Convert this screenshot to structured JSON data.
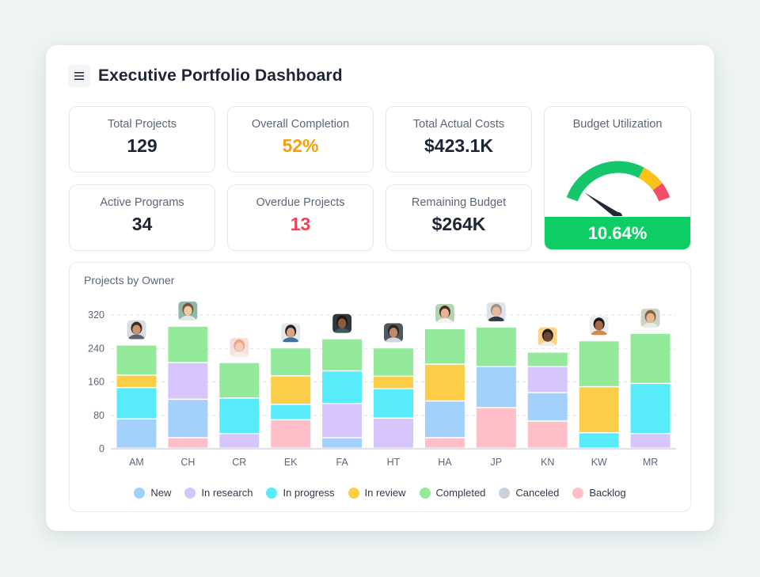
{
  "header": {
    "title": "Executive Portfolio Dashboard"
  },
  "kpis": {
    "total_projects": {
      "label": "Total Projects",
      "value": "129",
      "color": "#1d2433"
    },
    "overall_completion": {
      "label": "Overall Completion",
      "value": "52%",
      "color": "#f5a10e"
    },
    "total_actual_costs": {
      "label": "Total Actual Costs",
      "value": "$423.1K",
      "color": "#1d2433"
    },
    "active_programs": {
      "label": "Active Programs",
      "value": "34",
      "color": "#1d2433"
    },
    "overdue_projects": {
      "label": "Overdue Projects",
      "value": "13",
      "color": "#f0435a"
    },
    "remaining_budget": {
      "label": "Remaining Budget",
      "value": "$264K",
      "color": "#1d2433"
    }
  },
  "budget_gauge": {
    "label": "Budget Utilization",
    "value_text": "10.64%",
    "needle_fraction": 0.1064,
    "bands": [
      {
        "to": 0.7,
        "color": "#16c66b"
      },
      {
        "to": 0.88,
        "color": "#f9c21a"
      },
      {
        "to": 1.0,
        "color": "#f74d69"
      }
    ]
  },
  "chart_data": {
    "type": "bar",
    "stacked": true,
    "title": "Projects by Owner",
    "categories": [
      "AM",
      "CH",
      "CR",
      "EK",
      "FA",
      "HT",
      "HA",
      "JP",
      "KN",
      "KW",
      "MR"
    ],
    "ylim": [
      0,
      320
    ],
    "yticks": [
      0,
      80,
      160,
      240,
      320
    ],
    "grid": true,
    "legend_position": "bottom",
    "series": [
      {
        "name": "Backlog",
        "color": "#ffbfc9",
        "values": [
          0,
          25,
          0,
          68,
          0,
          0,
          25,
          97,
          65,
          0,
          0
        ]
      },
      {
        "name": "New",
        "color": "#a3d1fb",
        "values": [
          70,
          0,
          0,
          0,
          25,
          0,
          0,
          0,
          0,
          0,
          0
        ]
      },
      {
        "name": "In research",
        "color": "#d6c6fb",
        "values": [
          0,
          0,
          35,
          0,
          0,
          72,
          0,
          0,
          0,
          0,
          35
        ]
      },
      {
        "name": "New",
        "color": "#a3d1fb",
        "values": [
          0,
          92,
          0,
          0,
          0,
          0,
          88,
          98,
          0,
          0,
          0
        ]
      },
      {
        "name": "In research",
        "color": "#d6c6fb",
        "values": [
          0,
          0,
          0,
          0,
          82,
          0,
          0,
          0,
          0,
          0,
          0
        ]
      },
      {
        "name": "In progress",
        "color": "#58ecfb",
        "values": [
          0,
          0,
          0,
          0,
          0,
          0,
          0,
          0,
          0,
          0,
          0
        ]
      },
      {
        "name": "New",
        "color": "#a3d1fb",
        "values": [
          0,
          0,
          0,
          0,
          0,
          0,
          0,
          0,
          68,
          0,
          0
        ]
      },
      {
        "name": "In progress",
        "color": "#58ecfb",
        "values": [
          75,
          0,
          85,
          37,
          78,
          70,
          0,
          0,
          0,
          37,
          120
        ]
      },
      {
        "name": "In research",
        "color": "#d6c6fb",
        "values": [
          0,
          88,
          0,
          0,
          0,
          0,
          0,
          0,
          62,
          0,
          0
        ]
      },
      {
        "name": "In review",
        "color": "#fcce48",
        "values": [
          30,
          0,
          0,
          68,
          0,
          30,
          88,
          0,
          0,
          110,
          0
        ]
      },
      {
        "name": "Completed",
        "color": "#92ea9a",
        "values": [
          72,
          87,
          85,
          67,
          77,
          68,
          85,
          95,
          35,
          110,
          120
        ]
      }
    ],
    "legend": [
      {
        "name": "New",
        "color": "#a3d1fb"
      },
      {
        "name": "In research",
        "color": "#d6c6fb"
      },
      {
        "name": "In progress",
        "color": "#58ecfb"
      },
      {
        "name": "In review",
        "color": "#fcce48"
      },
      {
        "name": "Completed",
        "color": "#92ea9a"
      },
      {
        "name": "Canceled",
        "color": "#c9d2db"
      },
      {
        "name": "Backlog",
        "color": "#ffbfc9"
      }
    ],
    "avatars": [
      {
        "owner": "AM",
        "skin": "#c99473",
        "hair": "#3a2a22",
        "bg": "#d9dde2",
        "shirt": "#5a6470"
      },
      {
        "owner": "CH",
        "skin": "#f0c7a9",
        "hair": "#7a5433",
        "bg": "#8fb7a8",
        "shirt": "#e0e6ea"
      },
      {
        "owner": "CR",
        "skin": "#f4cdb6",
        "hair": "#e9a78a",
        "bg": "#f6dfdc",
        "shirt": "#f3f0ee"
      },
      {
        "owner": "EK",
        "skin": "#d9a583",
        "hair": "#2a211c",
        "bg": "#e3e8ec",
        "shirt": "#3d6fa3"
      },
      {
        "owner": "FA",
        "skin": "#8a5a3f",
        "hair": "#1e1714",
        "bg": "#30363d",
        "shirt": "#3a5a5e"
      },
      {
        "owner": "HT",
        "skin": "#c08a68",
        "hair": "#2b2420",
        "bg": "#4f5760",
        "shirt": "#cfd6dc"
      },
      {
        "owner": "HA",
        "skin": "#e6b394",
        "hair": "#4a3223",
        "bg": "#b7d1b3",
        "shirt": "#f4f4f2"
      },
      {
        "owner": "JP",
        "skin": "#e5b999",
        "hair": "#9a9590",
        "bg": "#dfe3e6",
        "shirt": "#2d3a48"
      },
      {
        "owner": "KN",
        "skin": "#6e4836",
        "hair": "#2a1d18",
        "bg": "#f8d48a",
        "shirt": "#f2ede6"
      },
      {
        "owner": "KW",
        "skin": "#a86a4c",
        "hair": "#1d1714",
        "bg": "#e9edf0",
        "shirt": "#d08a50"
      },
      {
        "owner": "MR",
        "skin": "#e8b897",
        "hair": "#8a5f3d",
        "bg": "#c9d4c2",
        "shirt": "#e6ece8"
      }
    ]
  }
}
